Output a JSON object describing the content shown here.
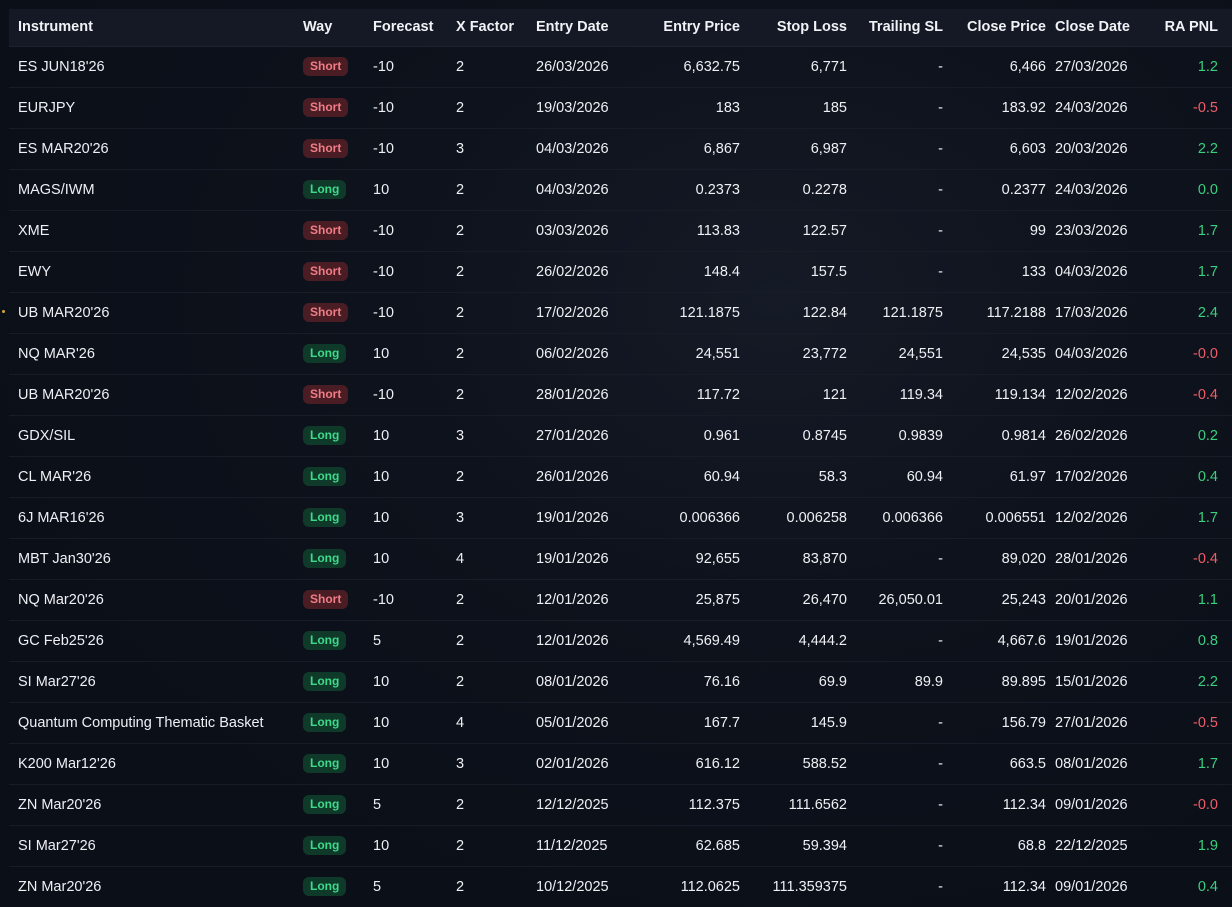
{
  "columns": {
    "instrument": "Instrument",
    "way": "Way",
    "forecast": "Forecast",
    "xfactor": "X Factor",
    "entry_date": "Entry Date",
    "entry_price": "Entry Price",
    "stop_loss": "Stop Loss",
    "trailing_sl": "Trailing SL",
    "close_price": "Close Price",
    "close_date": "Close Date",
    "ra_pnl": "RA PNL"
  },
  "colors": {
    "short_text": "#f07d86",
    "short_bg": "#4a1c24",
    "long_text": "#3fd98a",
    "long_bg": "#0f3a2a",
    "positive": "#39d07e",
    "negative": "#ee5d68"
  },
  "rows": [
    {
      "instrument": "ES JUN18'26",
      "way": "Short",
      "forecast": "-10",
      "xfactor": "2",
      "entry_date": "26/03/2026",
      "entry_price": "6,632.75",
      "stop_loss": "6,771",
      "trailing_sl": "-",
      "close_price": "6,466",
      "close_date": "27/03/2026",
      "ra_pnl": "1.2"
    },
    {
      "instrument": "EURJPY",
      "way": "Short",
      "forecast": "-10",
      "xfactor": "2",
      "entry_date": "19/03/2026",
      "entry_price": "183",
      "stop_loss": "185",
      "trailing_sl": "-",
      "close_price": "183.92",
      "close_date": "24/03/2026",
      "ra_pnl": "-0.5"
    },
    {
      "instrument": "ES MAR20'26",
      "way": "Short",
      "forecast": "-10",
      "xfactor": "3",
      "entry_date": "04/03/2026",
      "entry_price": "6,867",
      "stop_loss": "6,987",
      "trailing_sl": "-",
      "close_price": "6,603",
      "close_date": "20/03/2026",
      "ra_pnl": "2.2"
    },
    {
      "instrument": "MAGS/IWM",
      "way": "Long",
      "forecast": "10",
      "xfactor": "2",
      "entry_date": "04/03/2026",
      "entry_price": "0.2373",
      "stop_loss": "0.2278",
      "trailing_sl": "-",
      "close_price": "0.2377",
      "close_date": "24/03/2026",
      "ra_pnl": "0.0"
    },
    {
      "instrument": "XME",
      "way": "Short",
      "forecast": "-10",
      "xfactor": "2",
      "entry_date": "03/03/2026",
      "entry_price": "113.83",
      "stop_loss": "122.57",
      "trailing_sl": "-",
      "close_price": "99",
      "close_date": "23/03/2026",
      "ra_pnl": "1.7"
    },
    {
      "instrument": "EWY",
      "way": "Short",
      "forecast": "-10",
      "xfactor": "2",
      "entry_date": "26/02/2026",
      "entry_price": "148.4",
      "stop_loss": "157.5",
      "trailing_sl": "-",
      "close_price": "133",
      "close_date": "04/03/2026",
      "ra_pnl": "1.7"
    },
    {
      "instrument": "UB MAR20'26",
      "way": "Short",
      "forecast": "-10",
      "xfactor": "2",
      "entry_date": "17/02/2026",
      "entry_price": "121.1875",
      "stop_loss": "122.84",
      "trailing_sl": "121.1875",
      "close_price": "117.2188",
      "close_date": "17/03/2026",
      "ra_pnl": "2.4"
    },
    {
      "instrument": "NQ MAR'26",
      "way": "Long",
      "forecast": "10",
      "xfactor": "2",
      "entry_date": "06/02/2026",
      "entry_price": "24,551",
      "stop_loss": "23,772",
      "trailing_sl": "24,551",
      "close_price": "24,535",
      "close_date": "04/03/2026",
      "ra_pnl": "-0.0"
    },
    {
      "instrument": "UB MAR20'26",
      "way": "Short",
      "forecast": "-10",
      "xfactor": "2",
      "entry_date": "28/01/2026",
      "entry_price": "117.72",
      "stop_loss": "121",
      "trailing_sl": "119.34",
      "close_price": "119.134",
      "close_date": "12/02/2026",
      "ra_pnl": "-0.4"
    },
    {
      "instrument": "GDX/SIL",
      "way": "Long",
      "forecast": "10",
      "xfactor": "3",
      "entry_date": "27/01/2026",
      "entry_price": "0.961",
      "stop_loss": "0.8745",
      "trailing_sl": "0.9839",
      "close_price": "0.9814",
      "close_date": "26/02/2026",
      "ra_pnl": "0.2"
    },
    {
      "instrument": "CL MAR'26",
      "way": "Long",
      "forecast": "10",
      "xfactor": "2",
      "entry_date": "26/01/2026",
      "entry_price": "60.94",
      "stop_loss": "58.3",
      "trailing_sl": "60.94",
      "close_price": "61.97",
      "close_date": "17/02/2026",
      "ra_pnl": "0.4"
    },
    {
      "instrument": "6J MAR16'26",
      "way": "Long",
      "forecast": "10",
      "xfactor": "3",
      "entry_date": "19/01/2026",
      "entry_price": "0.006366",
      "stop_loss": "0.006258",
      "trailing_sl": "0.006366",
      "close_price": "0.006551",
      "close_date": "12/02/2026",
      "ra_pnl": "1.7"
    },
    {
      "instrument": "MBT Jan30'26",
      "way": "Long",
      "forecast": "10",
      "xfactor": "4",
      "entry_date": "19/01/2026",
      "entry_price": "92,655",
      "stop_loss": "83,870",
      "trailing_sl": "-",
      "close_price": "89,020",
      "close_date": "28/01/2026",
      "ra_pnl": "-0.4"
    },
    {
      "instrument": "NQ Mar20'26",
      "way": "Short",
      "forecast": "-10",
      "xfactor": "2",
      "entry_date": "12/01/2026",
      "entry_price": "25,875",
      "stop_loss": "26,470",
      "trailing_sl": "26,050.01",
      "close_price": "25,243",
      "close_date": "20/01/2026",
      "ra_pnl": "1.1"
    },
    {
      "instrument": "GC Feb25'26",
      "way": "Long",
      "forecast": "5",
      "xfactor": "2",
      "entry_date": "12/01/2026",
      "entry_price": "4,569.49",
      "stop_loss": "4,444.2",
      "trailing_sl": "-",
      "close_price": "4,667.6",
      "close_date": "19/01/2026",
      "ra_pnl": "0.8"
    },
    {
      "instrument": "SI Mar27'26",
      "way": "Long",
      "forecast": "10",
      "xfactor": "2",
      "entry_date": "08/01/2026",
      "entry_price": "76.16",
      "stop_loss": "69.9",
      "trailing_sl": "89.9",
      "close_price": "89.895",
      "close_date": "15/01/2026",
      "ra_pnl": "2.2"
    },
    {
      "instrument": "Quantum Computing Thematic Basket",
      "way": "Long",
      "forecast": "10",
      "xfactor": "4",
      "entry_date": "05/01/2026",
      "entry_price": "167.7",
      "stop_loss": "145.9",
      "trailing_sl": "-",
      "close_price": "156.79",
      "close_date": "27/01/2026",
      "ra_pnl": "-0.5"
    },
    {
      "instrument": "K200 Mar12'26",
      "way": "Long",
      "forecast": "10",
      "xfactor": "3",
      "entry_date": "02/01/2026",
      "entry_price": "616.12",
      "stop_loss": "588.52",
      "trailing_sl": "-",
      "close_price": "663.5",
      "close_date": "08/01/2026",
      "ra_pnl": "1.7"
    },
    {
      "instrument": "ZN Mar20'26",
      "way": "Long",
      "forecast": "5",
      "xfactor": "2",
      "entry_date": "12/12/2025",
      "entry_price": "112.375",
      "stop_loss": "111.6562",
      "trailing_sl": "-",
      "close_price": "112.34",
      "close_date": "09/01/2026",
      "ra_pnl": "-0.0"
    },
    {
      "instrument": "SI Mar27'26",
      "way": "Long",
      "forecast": "10",
      "xfactor": "2",
      "entry_date": "11/12/2025",
      "entry_price": "62.685",
      "stop_loss": "59.394",
      "trailing_sl": "-",
      "close_price": "68.8",
      "close_date": "22/12/2025",
      "ra_pnl": "1.9"
    },
    {
      "instrument": "ZN Mar20'26",
      "way": "Long",
      "forecast": "5",
      "xfactor": "2",
      "entry_date": "10/12/2025",
      "entry_price": "112.0625",
      "stop_loss": "111.359375",
      "trailing_sl": "-",
      "close_price": "112.34",
      "close_date": "09/01/2026",
      "ra_pnl": "0.4"
    }
  ]
}
